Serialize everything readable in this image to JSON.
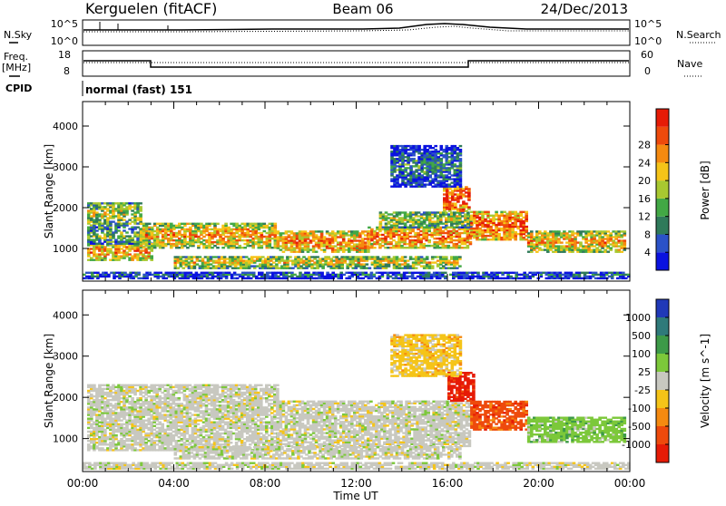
{
  "header": {
    "station": "Kerguelen (fitACF)",
    "beam": "Beam 06",
    "date": "24/Dec/2013"
  },
  "noise_panel": {
    "left_label": "N.Sky",
    "right_label": "N.Search",
    "ticks": [
      "10^5",
      "10^0"
    ]
  },
  "freq_panel": {
    "left_label_1": "Freq.",
    "left_label_2": "[MHz]",
    "left_ticks": [
      "18",
      "8"
    ],
    "right_label": "Nave",
    "right_ticks": [
      "60",
      "0"
    ]
  },
  "cpid": {
    "label": "CPID",
    "value": "normal (fast) 151"
  },
  "chart_data": [
    {
      "type": "heatmap",
      "title": "",
      "xlabel": "Time UT",
      "ylabel": "Slant Range [km]",
      "x_ticks": [
        "00:00",
        "04:00",
        "08:00",
        "12:00",
        "16:00",
        "20:00",
        "00:00"
      ],
      "y_ticks": [
        "1000",
        "2000",
        "3000",
        "4000"
      ],
      "xlim_hours": [
        0,
        24
      ],
      "ylim_km": [
        200,
        4600
      ],
      "colorbar": {
        "label": "Power [dB]",
        "ticks": [
          "4",
          "8",
          "12",
          "16",
          "20",
          "24",
          "28"
        ],
        "colors": [
          "#0a12e0",
          "#2b52c8",
          "#2f7a5a",
          "#42a845",
          "#a8c830",
          "#f5c418",
          "#f58a10",
          "#ee4a0c",
          "#e61b06"
        ]
      },
      "bands": [
        {
          "t0": 0.2,
          "t1": 3.0,
          "r0": 700,
          "r1": 1100,
          "level": 0.75
        },
        {
          "t0": 0.2,
          "t1": 3.0,
          "r0": 1100,
          "r1": 1500,
          "level": 0.45
        },
        {
          "t0": 0.2,
          "t1": 2.5,
          "r0": 1500,
          "r1": 2100,
          "level": 0.55
        },
        {
          "t0": 2.5,
          "t1": 8.5,
          "r0": 1000,
          "r1": 1600,
          "level": 0.7
        },
        {
          "t0": 8.5,
          "t1": 12.5,
          "r0": 900,
          "r1": 1400,
          "level": 0.78
        },
        {
          "t0": 12.5,
          "t1": 17.0,
          "r0": 1000,
          "r1": 1500,
          "level": 0.8
        },
        {
          "t0": 13.0,
          "t1": 17.0,
          "r0": 1500,
          "r1": 1900,
          "level": 0.55
        },
        {
          "t0": 15.8,
          "t1": 17.0,
          "r0": 1900,
          "r1": 2500,
          "level": 0.92
        },
        {
          "t0": 17.0,
          "t1": 19.5,
          "r0": 1200,
          "r1": 1900,
          "level": 0.85
        },
        {
          "t0": 19.5,
          "t1": 23.8,
          "r0": 900,
          "r1": 1400,
          "level": 0.7
        },
        {
          "t0": 4.0,
          "t1": 16.5,
          "r0": 500,
          "r1": 800,
          "level": 0.6
        },
        {
          "t0": 13.5,
          "t1": 16.5,
          "r0": 2500,
          "r1": 3500,
          "level": 0.3
        },
        {
          "t0": 0.0,
          "t1": 24.0,
          "r0": 250,
          "r1": 420,
          "level": 0.25
        }
      ]
    },
    {
      "type": "heatmap",
      "title": "",
      "xlabel": "Time UT",
      "ylabel": "Slant Range [km]",
      "x_ticks": [
        "00:00",
        "04:00",
        "08:00",
        "12:00",
        "16:00",
        "20:00",
        "00:00"
      ],
      "y_ticks": [
        "1000",
        "2000",
        "3000",
        "4000"
      ],
      "xlim_hours": [
        0,
        24
      ],
      "ylim_km": [
        200,
        4600
      ],
      "colorbar": {
        "label": "Velocity [m s^-1]",
        "ticks": [
          "1000",
          "500",
          "100",
          "25",
          "-25",
          "-100",
          "-500",
          "-1000"
        ],
        "colors": [
          "#2039b8",
          "#2f7a7a",
          "#3d9a48",
          "#7cc83a",
          "#c8c8c0",
          "#f5c418",
          "#f58a10",
          "#ee4a0c",
          "#e61b06"
        ]
      },
      "bands": [
        {
          "t0": 0.2,
          "t1": 8.5,
          "r0": 700,
          "r1": 2300,
          "level": 4
        },
        {
          "t0": 8.5,
          "t1": 17.0,
          "r0": 800,
          "r1": 1900,
          "level": 4
        },
        {
          "t0": 4.0,
          "t1": 16.5,
          "r0": 500,
          "r1": 800,
          "level": 4
        },
        {
          "t0": 16.0,
          "t1": 17.2,
          "r0": 1900,
          "r1": 2600,
          "level": 8
        },
        {
          "t0": 17.0,
          "t1": 19.5,
          "r0": 1200,
          "r1": 1900,
          "level": 7
        },
        {
          "t0": 19.5,
          "t1": 23.8,
          "r0": 900,
          "r1": 1500,
          "level": 3
        },
        {
          "t0": 13.5,
          "t1": 16.5,
          "r0": 2500,
          "r1": 3500,
          "level": 5
        },
        {
          "t0": 0.0,
          "t1": 24.0,
          "r0": 250,
          "r1": 420,
          "level": 4
        }
      ]
    }
  ]
}
